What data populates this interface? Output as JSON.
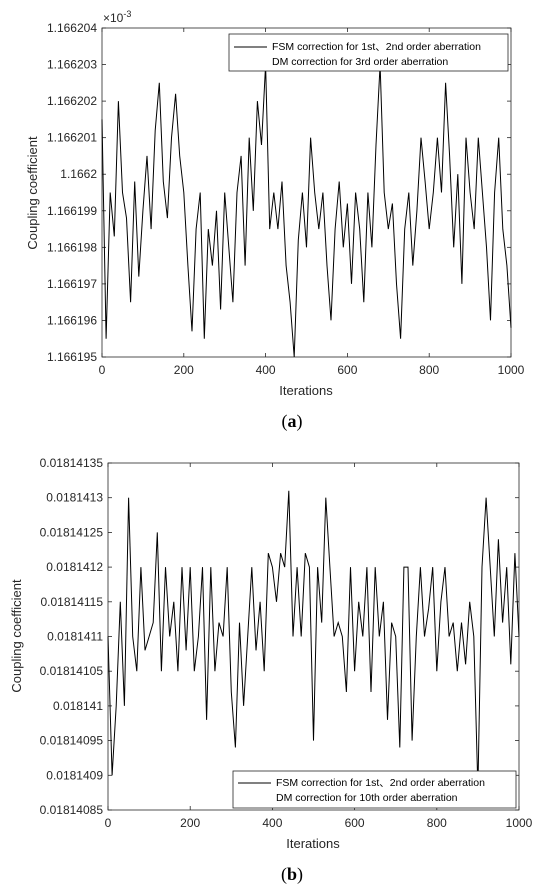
{
  "chart_data": [
    {
      "type": "line",
      "caption": "(a)",
      "caption_letter": "a",
      "xlabel": "Iterations",
      "ylabel": "Coupling coefficient",
      "exponent_label": "×10",
      "exponent_power": "-3",
      "xlim": [
        0,
        1000
      ],
      "ylim": [
        1.166195,
        1.166204
      ],
      "xticks": [
        0,
        200,
        400,
        600,
        800,
        1000
      ],
      "xtick_labels": [
        "0",
        "200",
        "400",
        "600",
        "800",
        "1000"
      ],
      "yticks": [
        1.166195,
        1.166196,
        1.166197,
        1.166198,
        1.166199,
        1.1662,
        1.166201,
        1.166202,
        1.166203,
        1.166204
      ],
      "ytick_labels": [
        "1.166195",
        "1.166196",
        "1.166197",
        "1.166198",
        "1.166199",
        "1.1662",
        "1.166201",
        "1.166202",
        "1.166203",
        "1.166204"
      ],
      "legend_position": "top-right",
      "legend": [
        "FSM correction for 1st、2nd order aberration",
        "DM correction for 3rd order aberration"
      ],
      "series": [
        {
          "color": "#000000",
          "x": [
            0,
            10,
            20,
            30,
            40,
            50,
            60,
            70,
            80,
            90,
            100,
            110,
            120,
            130,
            140,
            150,
            160,
            170,
            180,
            190,
            200,
            210,
            220,
            230,
            240,
            250,
            260,
            270,
            280,
            290,
            300,
            310,
            320,
            330,
            340,
            350,
            360,
            370,
            380,
            390,
            400,
            410,
            420,
            430,
            440,
            450,
            460,
            470,
            480,
            490,
            500,
            510,
            520,
            530,
            540,
            550,
            560,
            570,
            580,
            590,
            600,
            610,
            620,
            630,
            640,
            650,
            660,
            670,
            680,
            690,
            700,
            710,
            720,
            730,
            740,
            750,
            760,
            770,
            780,
            790,
            800,
            810,
            820,
            830,
            840,
            850,
            860,
            870,
            880,
            890,
            900,
            910,
            920,
            930,
            940,
            950,
            960,
            970,
            980,
            990,
            1000
          ],
          "y": [
            1.1662015,
            1.1661955,
            1.1661995,
            1.1661983,
            1.166202,
            1.1661995,
            1.1661988,
            1.1661965,
            1.1661998,
            1.1661972,
            1.166199,
            1.1662005,
            1.1661985,
            1.1662012,
            1.1662025,
            1.1661998,
            1.1661988,
            1.166201,
            1.1662022,
            1.1662005,
            1.1661995,
            1.1661975,
            1.1661957,
            1.1661985,
            1.1661995,
            1.1661955,
            1.1661985,
            1.1661975,
            1.166199,
            1.1661963,
            1.1661995,
            1.166198,
            1.1661965,
            1.1661995,
            1.1662005,
            1.1661975,
            1.166201,
            1.166199,
            1.166202,
            1.1662008,
            1.166203,
            1.1661985,
            1.1661995,
            1.1661985,
            1.1661998,
            1.1661975,
            1.1661965,
            1.166195,
            1.1661982,
            1.1661995,
            1.166198,
            1.166201,
            1.1661995,
            1.1661985,
            1.1661995,
            1.1661975,
            1.166196,
            1.1661985,
            1.1661998,
            1.166198,
            1.1661992,
            1.166197,
            1.1661995,
            1.1661985,
            1.1661965,
            1.1661995,
            1.166198,
            1.1662008,
            1.166203,
            1.1661995,
            1.1661985,
            1.1661992,
            1.166197,
            1.1661955,
            1.1661985,
            1.1661995,
            1.1661975,
            1.166199,
            1.166201,
            1.1661998,
            1.1661985,
            1.1661995,
            1.166201,
            1.1661995,
            1.1662025,
            1.1662005,
            1.166198,
            1.1662,
            1.166197,
            1.166201,
            1.1661995,
            1.1661985,
            1.166201,
            1.1661995,
            1.166198,
            1.166196,
            1.1661995,
            1.166201,
            1.1661985,
            1.1661975,
            1.1661958
          ]
        }
      ]
    },
    {
      "type": "line",
      "caption": "(b)",
      "caption_letter": "b",
      "xlabel": "Iterations",
      "ylabel": "Coupling coefficient",
      "xlim": [
        0,
        1000
      ],
      "ylim": [
        0.01814085,
        0.01814135
      ],
      "xticks": [
        0,
        200,
        400,
        600,
        800,
        1000
      ],
      "xtick_labels": [
        "0",
        "200",
        "400",
        "600",
        "800",
        "1000"
      ],
      "yticks": [
        0.01814085,
        0.0181409,
        0.01814095,
        0.018141,
        0.01814105,
        0.0181411,
        0.01814115,
        0.0181412,
        0.01814125,
        0.0181413,
        0.01814135
      ],
      "ytick_labels": [
        "0.01814085",
        "0.0181409",
        "0.01814095",
        "0.018141",
        "0.01814105",
        "0.0181411",
        "0.01814115",
        "0.0181412",
        "0.01814125",
        "0.0181413",
        "0.01814135"
      ],
      "legend_position": "bottom-right",
      "legend": [
        "FSM correction for 1st、2nd order aberration",
        "DM correction for 10th order aberration"
      ],
      "series": [
        {
          "color": "#000000",
          "x": [
            0,
            10,
            20,
            30,
            40,
            50,
            60,
            70,
            80,
            90,
            100,
            110,
            120,
            130,
            140,
            150,
            160,
            170,
            180,
            190,
            200,
            210,
            220,
            230,
            240,
            250,
            260,
            270,
            280,
            290,
            300,
            310,
            320,
            330,
            340,
            350,
            360,
            370,
            380,
            390,
            400,
            410,
            420,
            430,
            440,
            450,
            460,
            470,
            480,
            490,
            500,
            510,
            520,
            530,
            540,
            550,
            560,
            570,
            580,
            590,
            600,
            610,
            620,
            630,
            640,
            650,
            660,
            670,
            680,
            690,
            700,
            710,
            720,
            730,
            740,
            750,
            760,
            770,
            780,
            790,
            800,
            810,
            820,
            830,
            840,
            850,
            860,
            870,
            880,
            890,
            900,
            910,
            920,
            930,
            940,
            950,
            960,
            970,
            980,
            990,
            1000
          ],
          "y": [
            0.0181411,
            0.0181409,
            0.018141,
            0.01814115,
            0.018141,
            0.0181413,
            0.0181411,
            0.01814105,
            0.0181412,
            0.01814108,
            0.0181411,
            0.01814112,
            0.01814125,
            0.01814105,
            0.0181412,
            0.0181411,
            0.01814115,
            0.01814105,
            0.0181412,
            0.01814108,
            0.0181412,
            0.01814105,
            0.0181411,
            0.0181412,
            0.01814098,
            0.0181412,
            0.01814105,
            0.01814112,
            0.0181411,
            0.0181412,
            0.01814102,
            0.01814094,
            0.01814112,
            0.018141,
            0.0181411,
            0.0181412,
            0.01814108,
            0.01814115,
            0.01814105,
            0.01814122,
            0.0181412,
            0.01814115,
            0.01814122,
            0.0181412,
            0.01814131,
            0.0181411,
            0.0181412,
            0.0181411,
            0.01814122,
            0.0181412,
            0.01814095,
            0.0181412,
            0.01814112,
            0.0181413,
            0.0181412,
            0.0181411,
            0.01814112,
            0.0181411,
            0.01814102,
            0.0181412,
            0.01814105,
            0.01814115,
            0.0181411,
            0.0181412,
            0.01814102,
            0.0181412,
            0.0181411,
            0.01814115,
            0.01814098,
            0.01814112,
            0.0181411,
            0.01814094,
            0.0181412,
            0.0181412,
            0.01814095,
            0.0181411,
            0.0181412,
            0.0181411,
            0.01814114,
            0.0181412,
            0.01814105,
            0.01814115,
            0.0181412,
            0.0181411,
            0.01814112,
            0.01814105,
            0.01814112,
            0.01814106,
            0.01814115,
            0.0181411,
            0.01814088,
            0.0181412,
            0.0181413,
            0.0181412,
            0.0181411,
            0.01814124,
            0.01814112,
            0.0181412,
            0.01814106,
            0.01814122,
            0.0181411
          ]
        }
      ]
    }
  ]
}
